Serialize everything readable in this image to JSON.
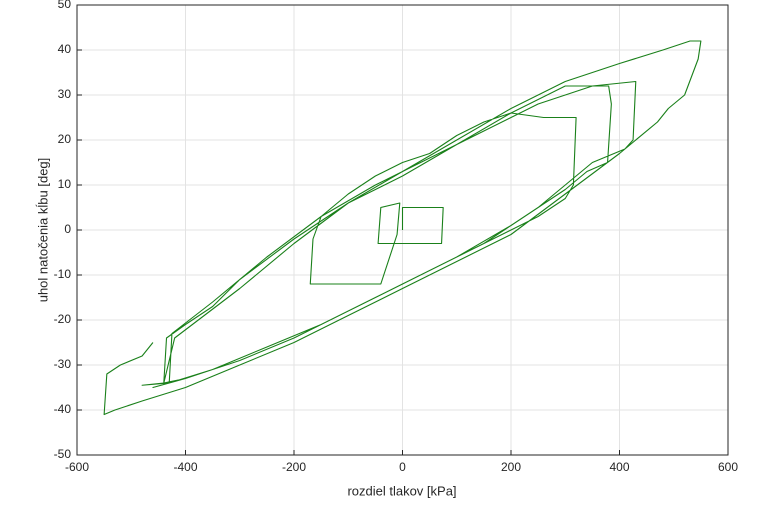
{
  "chart_data": {
    "type": "line",
    "xlabel": "rozdiel tlakov [kPa]",
    "ylabel": "uhol natočenia kĺbu [deg]",
    "xlim": [
      -600,
      600
    ],
    "xticks": [
      -600,
      -400,
      -200,
      0,
      200,
      400,
      600
    ],
    "ylim": [
      -50,
      50
    ],
    "yticks": [
      -50,
      -40,
      -30,
      -20,
      -10,
      0,
      10,
      20,
      30,
      40,
      50
    ],
    "grid": true,
    "series": [
      {
        "color": "#1a801a",
        "x": [
          0,
          0,
          75,
          72,
          -45,
          -40,
          -5,
          -10,
          -40,
          -170,
          -165,
          -150,
          -100,
          -50,
          0,
          50,
          100,
          150,
          200,
          260,
          320,
          315,
          300,
          250,
          200,
          150,
          100,
          50,
          0,
          -100,
          -200,
          -300,
          -400,
          -440,
          -435,
          -400,
          -350,
          -300,
          -200,
          -100,
          0,
          100,
          200,
          300,
          380,
          385,
          378,
          340,
          300,
          200,
          100,
          0,
          -100,
          -200,
          -300,
          -400,
          -460,
          -430,
          -425,
          -350,
          -250,
          -150,
          -50,
          50,
          150,
          250,
          350,
          430,
          425,
          410,
          350,
          250,
          150,
          50,
          -50,
          -150,
          -250,
          -350,
          -430,
          -480,
          -440,
          -420,
          -300,
          -200,
          -100,
          0,
          100,
          200,
          300,
          400,
          480,
          530,
          550,
          545,
          520,
          490,
          470,
          400,
          300,
          200,
          100,
          0,
          -100,
          -200,
          -300,
          -400,
          -480,
          -530,
          -550,
          -545,
          -520,
          -480,
          -460
        ],
        "values": [
          0,
          5,
          5,
          -3,
          -3,
          5,
          6,
          -1,
          -12,
          -12,
          -2,
          3,
          8,
          12,
          15,
          17,
          21,
          24,
          26,
          25,
          25,
          10,
          7,
          3,
          0,
          -3,
          -6,
          -9,
          -12,
          -18,
          -24,
          -29,
          -33,
          -34,
          -24,
          -21,
          -17,
          -11,
          -2,
          6,
          12,
          19,
          26,
          32,
          32,
          28,
          15,
          13,
          9,
          1,
          -6,
          -12,
          -18,
          -24,
          -29,
          -33,
          -35,
          -34,
          -23,
          -16,
          -6,
          3,
          10,
          16,
          22,
          28,
          32,
          33,
          20,
          18,
          15,
          5,
          -3,
          -9,
          -15,
          -21,
          -26,
          -31,
          -34,
          -34.5,
          -34,
          -24,
          -13,
          -3,
          6,
          13,
          20,
          27,
          33,
          37,
          40,
          42,
          42,
          38,
          30,
          27,
          24,
          17,
          8,
          -1,
          -7,
          -13,
          -19,
          -25,
          -30,
          -35,
          -38,
          -40,
          -41,
          -32,
          -30,
          -28,
          -25
        ]
      }
    ]
  }
}
